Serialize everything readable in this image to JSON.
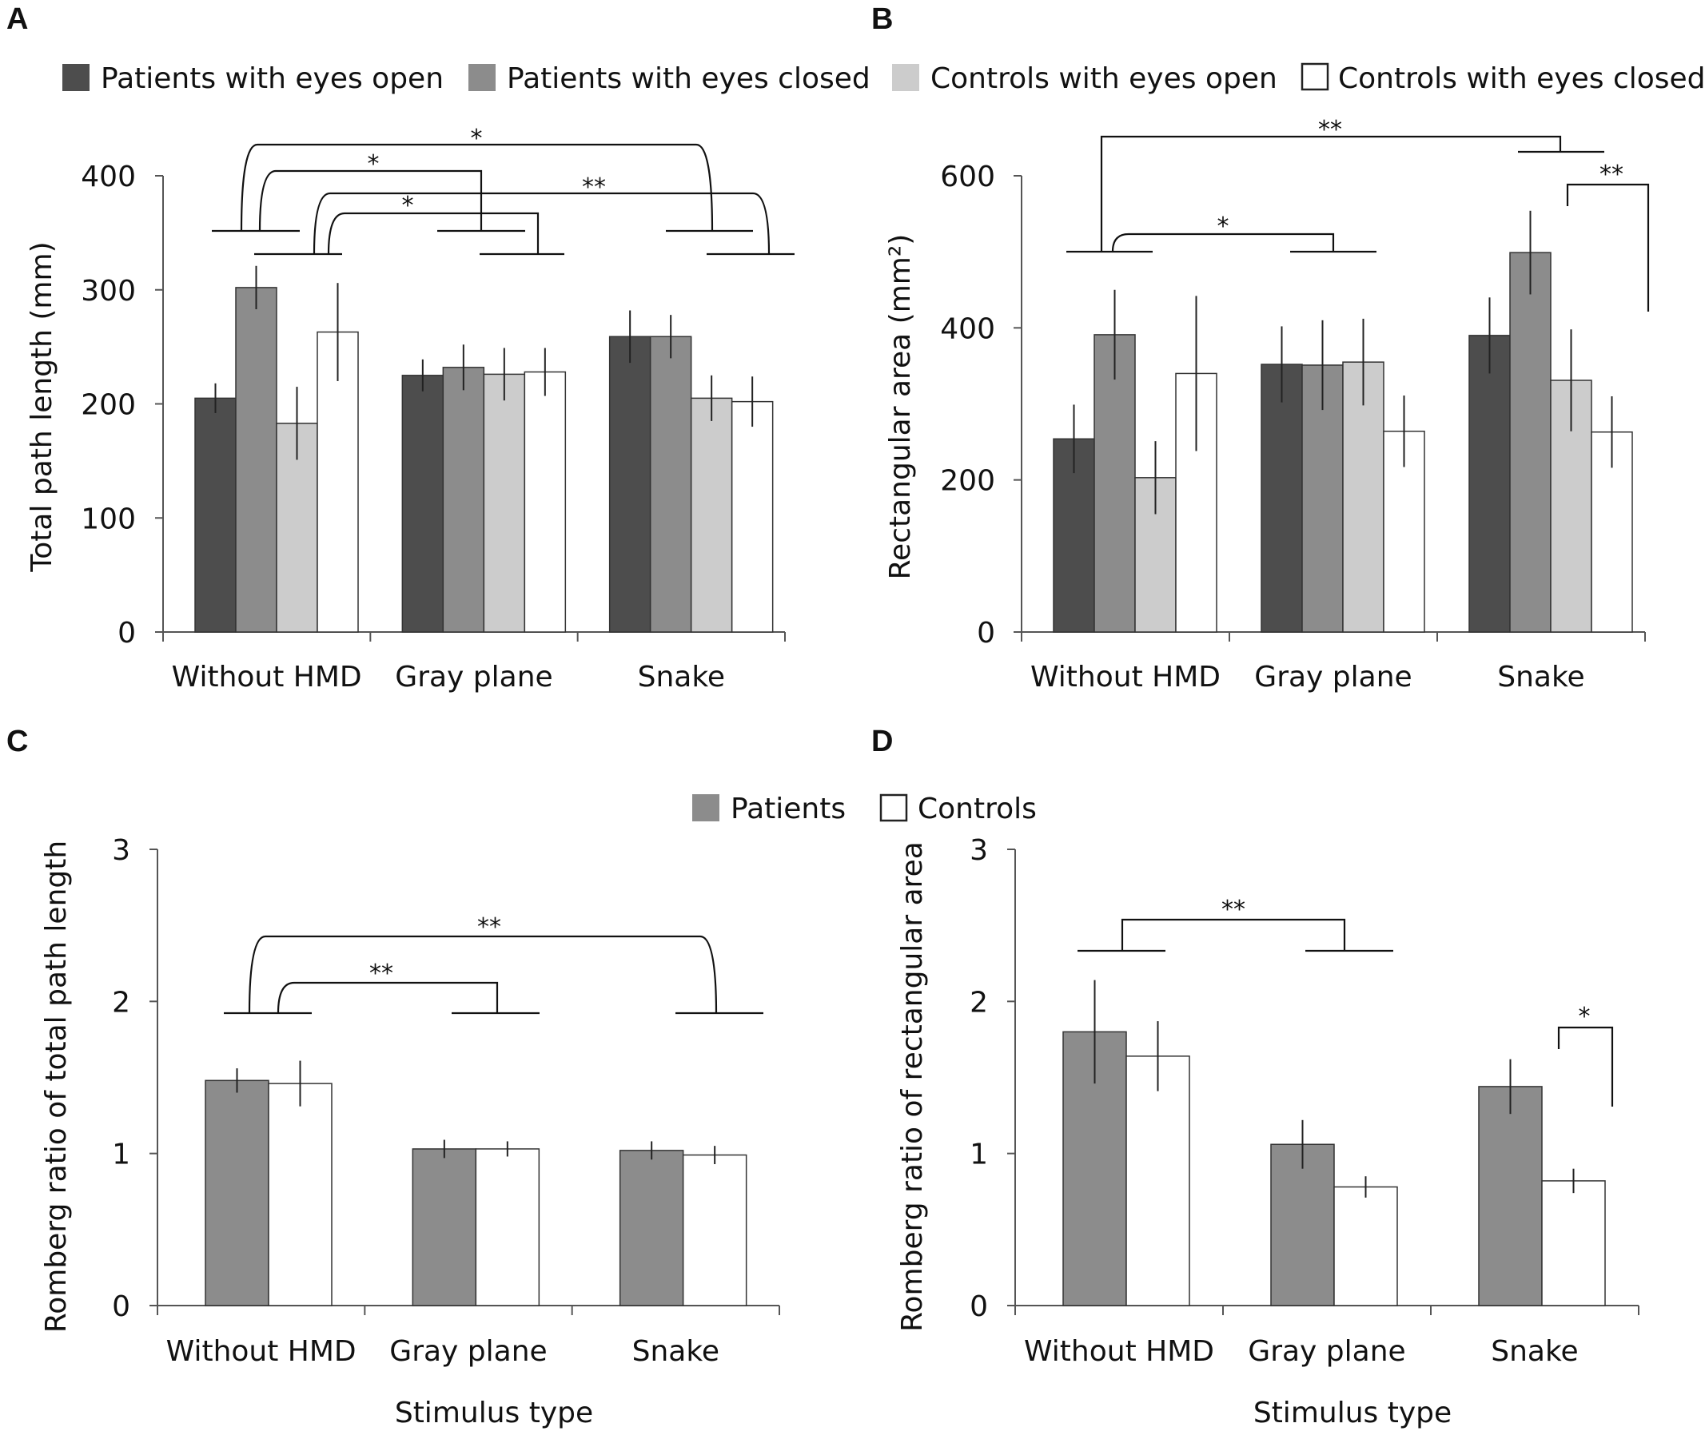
{
  "colors": {
    "patients_eyes_open": "#4d4d4d",
    "patients_eyes_closed": "#8c8c8c",
    "controls_eyes_open": "#cccccc",
    "controls_eyes_closed": "#ffffff",
    "patients": "#8c8c8c",
    "controls": "#ffffff",
    "stroke": "#333333"
  },
  "legend_top": [
    "Patients with eyes open",
    "Patients with eyes closed",
    "Controls with eyes open",
    "Controls with eyes closed"
  ],
  "legend_bottom": [
    "Patients",
    "Controls"
  ],
  "chart_data": [
    {
      "panel": "A",
      "type": "bar",
      "categories": [
        "Without HMD",
        "Gray plane",
        "Snake"
      ],
      "ylabel": "Total path length (mm)",
      "xlabel": "",
      "ylim": [
        0,
        400
      ],
      "yticks": [
        0,
        100,
        200,
        300,
        400
      ],
      "series": [
        {
          "name": "Patients with eyes open",
          "values": [
            205,
            225,
            259
          ],
          "errors": [
            13,
            14,
            23
          ]
        },
        {
          "name": "Patients with eyes closed",
          "values": [
            302,
            232,
            259
          ],
          "errors": [
            19,
            20,
            19
          ]
        },
        {
          "name": "Controls with eyes open",
          "values": [
            183,
            226,
            205
          ],
          "errors": [
            32,
            23,
            20
          ]
        },
        {
          "name": "Controls with eyes closed",
          "values": [
            263,
            228,
            202
          ],
          "errors": [
            43,
            21,
            22
          ]
        }
      ],
      "significance": [
        "*",
        "*",
        "*",
        "**"
      ]
    },
    {
      "panel": "B",
      "type": "bar",
      "categories": [
        "Without HMD",
        "Gray plane",
        "Snake"
      ],
      "ylabel": "Rectangular area (mm²)",
      "xlabel": "",
      "ylim": [
        0,
        600
      ],
      "yticks": [
        0,
        200,
        400,
        600
      ],
      "series": [
        {
          "name": "Patients with eyes open",
          "values": [
            254,
            352,
            390
          ],
          "errors": [
            45,
            50,
            50
          ]
        },
        {
          "name": "Patients with eyes closed",
          "values": [
            391,
            351,
            499
          ],
          "errors": [
            59,
            59,
            55
          ]
        },
        {
          "name": "Controls with eyes open",
          "values": [
            203,
            355,
            331
          ],
          "errors": [
            48,
            57,
            67
          ]
        },
        {
          "name": "Controls with eyes closed",
          "values": [
            340,
            264,
            263
          ],
          "errors": [
            102,
            47,
            47
          ]
        }
      ],
      "significance": [
        "**",
        "*",
        "**"
      ]
    },
    {
      "panel": "C",
      "type": "bar",
      "categories": [
        "Without HMD",
        "Gray plane",
        "Snake"
      ],
      "ylabel": "Romberg ratio of total path length",
      "xlabel": "Stimulus type",
      "ylim": [
        0,
        3
      ],
      "yticks": [
        0,
        1,
        2,
        3
      ],
      "series": [
        {
          "name": "Patients",
          "values": [
            1.48,
            1.03,
            1.02
          ],
          "errors": [
            0.08,
            0.06,
            0.06
          ]
        },
        {
          "name": "Controls",
          "values": [
            1.46,
            1.03,
            0.99
          ],
          "errors": [
            0.15,
            0.05,
            0.06
          ]
        }
      ],
      "significance": [
        "**",
        "**"
      ]
    },
    {
      "panel": "D",
      "type": "bar",
      "categories": [
        "Without HMD",
        "Gray plane",
        "Snake"
      ],
      "ylabel": "Romberg ratio of rectangular area",
      "xlabel": "Stimulus type",
      "ylim": [
        0,
        3
      ],
      "yticks": [
        0,
        1,
        2,
        3
      ],
      "series": [
        {
          "name": "Patients",
          "values": [
            1.8,
            1.06,
            1.44
          ],
          "errors": [
            0.34,
            0.16,
            0.18
          ]
        },
        {
          "name": "Controls",
          "values": [
            1.64,
            0.78,
            0.82
          ],
          "errors": [
            0.23,
            0.07,
            0.08
          ]
        }
      ],
      "significance": [
        "**",
        "*"
      ]
    }
  ]
}
